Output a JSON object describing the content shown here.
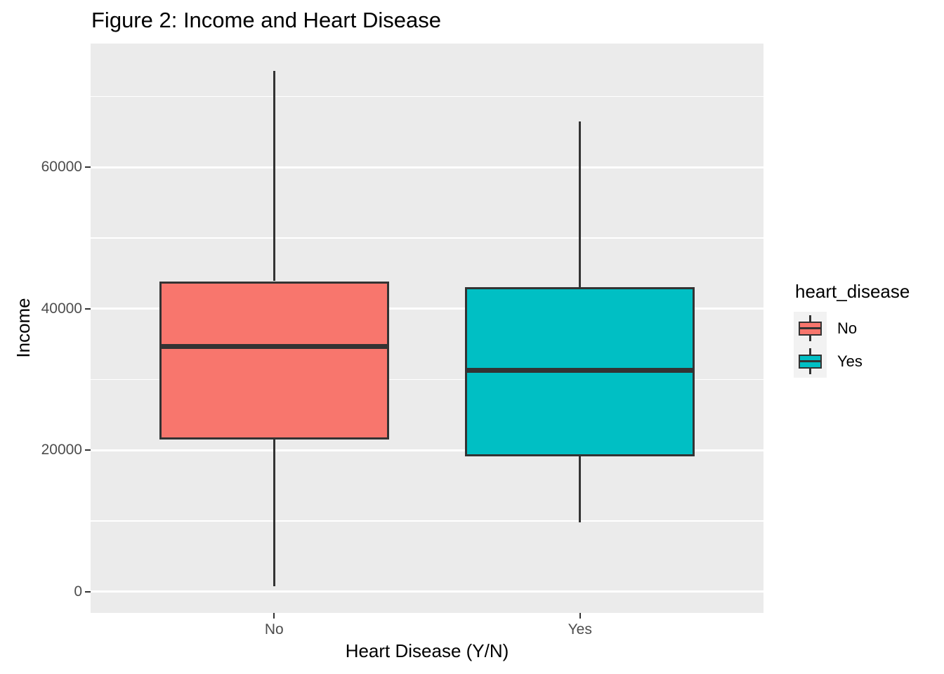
{
  "chart_data": {
    "type": "boxplot",
    "title": "Figure 2: Income and Heart Disease",
    "xlabel": "Heart Disease (Y/N)",
    "ylabel": "Income",
    "categories": [
      "No",
      "Yes"
    ],
    "y_ticks": [
      0,
      20000,
      40000,
      60000
    ],
    "y_minor_gridlines": [
      10000,
      30000,
      50000,
      70000
    ],
    "ylim": [
      -3000,
      77500
    ],
    "grid": "major-and-minor-horizontal",
    "legend_position": "right",
    "legend": {
      "title": "heart_disease",
      "entries": [
        {
          "label": "No",
          "color": "#F8766D"
        },
        {
          "label": "Yes",
          "color": "#00BFC4"
        }
      ]
    },
    "series": [
      {
        "category": "No",
        "fill": "#F8766D",
        "min": 800,
        "q1": 21500,
        "median": 34700,
        "q3": 43900,
        "max": 73600
      },
      {
        "category": "Yes",
        "fill": "#00BFC4",
        "min": 9800,
        "q1": 19100,
        "median": 31300,
        "q3": 43100,
        "max": 66500
      }
    ],
    "colors": {
      "panel_background": "#EBEBEB",
      "gridline": "#FFFFFF",
      "box_outline": "#333333",
      "axis_text": "#4D4D4D",
      "title_text": "#000000",
      "legend_key_background": "#F2F2F2"
    }
  }
}
